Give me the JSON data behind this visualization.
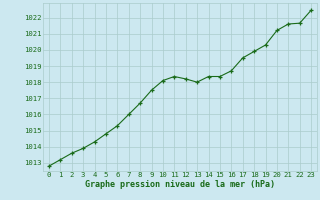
{
  "x": [
    0,
    1,
    2,
    3,
    4,
    5,
    6,
    7,
    8,
    9,
    10,
    11,
    12,
    13,
    14,
    15,
    16,
    17,
    18,
    19,
    20,
    21,
    22,
    23
  ],
  "y": [
    1012.8,
    1013.2,
    1013.6,
    1013.9,
    1014.3,
    1014.8,
    1015.3,
    1016.0,
    1016.7,
    1017.5,
    1018.1,
    1018.35,
    1018.2,
    1018.0,
    1018.35,
    1018.35,
    1018.7,
    1019.5,
    1019.9,
    1020.3,
    1021.2,
    1021.6,
    1021.65,
    1022.45
  ],
  "line_color": "#1a6b1a",
  "marker_color": "#1a6b1a",
  "bg_color": "#cce8f0",
  "grid_color": "#aacccc",
  "xlabel": "Graphe pression niveau de la mer (hPa)",
  "xlabel_color": "#1a6b1a",
  "tick_color": "#1a6b1a",
  "ylim_min": 1012.5,
  "ylim_max": 1022.9,
  "yticks": [
    1013,
    1014,
    1015,
    1016,
    1017,
    1018,
    1019,
    1020,
    1021,
    1022
  ],
  "xticks": [
    0,
    1,
    2,
    3,
    4,
    5,
    6,
    7,
    8,
    9,
    10,
    11,
    12,
    13,
    14,
    15,
    16,
    17,
    18,
    19,
    20,
    21,
    22,
    23
  ]
}
